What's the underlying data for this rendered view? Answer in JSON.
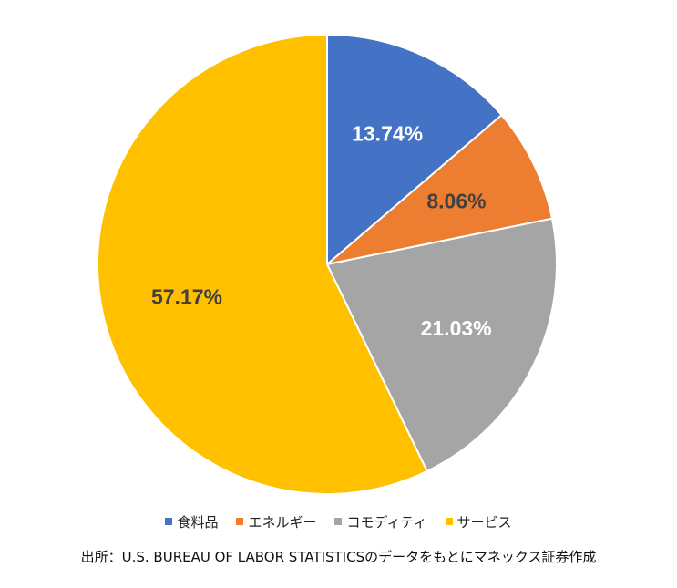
{
  "chart_data": {
    "type": "pie",
    "slices": [
      {
        "name": "食料品",
        "value": 13.74,
        "label": "13.74%",
        "color": "#4472C4",
        "label_color": "#ffffff"
      },
      {
        "name": "エネルギー",
        "value": 8.06,
        "label": "8.06%",
        "color": "#ED7D31",
        "label_color": "#404040"
      },
      {
        "name": "コモディティ",
        "value": 21.03,
        "label": "21.03%",
        "color": "#A5A5A5",
        "label_color": "#ffffff"
      },
      {
        "name": "サービス",
        "value": 57.17,
        "label": "57.17%",
        "color": "#FFC000",
        "label_color": "#404040"
      }
    ],
    "start_angle": "12 o'clock",
    "direction": "clockwise",
    "legend_position": "bottom"
  },
  "legend": {
    "items": [
      {
        "label": "食料品",
        "color": "#4472C4"
      },
      {
        "label": "エネルギー",
        "color": "#ED7D31"
      },
      {
        "label": "コモディティ",
        "color": "#A5A5A5"
      },
      {
        "label": "サービス",
        "color": "#FFC000"
      }
    ]
  },
  "source_note": "出所：U.S. BUREAU OF LABOR STATISTICSのデータをもとにマネックス証券作成"
}
